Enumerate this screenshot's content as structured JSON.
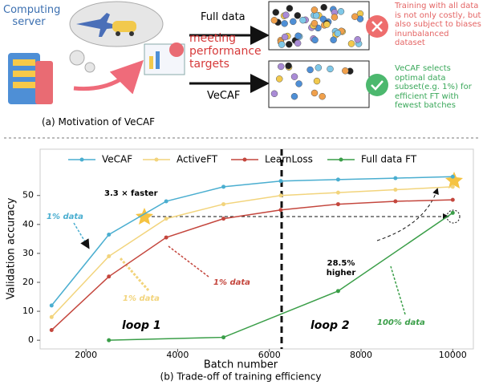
{
  "diagram": {
    "server_label": "Computing server",
    "full_data_label": "Full data",
    "vecaf_label": "VeCAF",
    "target_label": "meeting performance targets",
    "full_data_note": "Training with all data is not only costly, but also subject to biases inunbalanced dataset",
    "vecaf_note": "VeCAF selects optimal data subset(e.g. 1%) for efficient FT with fewest batches",
    "caption": "(a) Motivation of VeCAF"
  },
  "chart_data": {
    "type": "line",
    "caption": "(b) Trade-off of training efficiency",
    "x_label": "Batch number",
    "y_label": "Validation accuracy",
    "xlim": [
      1000,
      10450
    ],
    "ylim": [
      -3,
      66
    ],
    "xticks": [
      2000,
      4000,
      6000,
      8000,
      10000
    ],
    "yticks": [
      0,
      10,
      20,
      30,
      40,
      50
    ],
    "series": [
      {
        "name": "VeCAF",
        "color": "#4aaed0",
        "x": [
          1250,
          2500,
          3750,
          5000,
          6250,
          7500,
          8750,
          10000
        ],
        "values": [
          12,
          36.5,
          48,
          53,
          55,
          55.5,
          56,
          56.5
        ]
      },
      {
        "name": "ActiveFT",
        "color": "#f2d47c",
        "x": [
          1250,
          2500,
          3750,
          5000,
          6250,
          7500,
          8750,
          10000
        ],
        "values": [
          8,
          29,
          42,
          47,
          50,
          51,
          52,
          53
        ]
      },
      {
        "name": "LearnLoss",
        "color": "#c4463d",
        "x": [
          1250,
          2500,
          3750,
          5000,
          6250,
          7500,
          8750,
          10000
        ],
        "values": [
          3.5,
          22,
          35.5,
          42,
          45,
          47,
          48,
          48.5
        ]
      },
      {
        "name": "Full data FT",
        "color": "#3a9e48",
        "x": [
          2500,
          5000,
          7500,
          10000
        ],
        "values": [
          0,
          1,
          17,
          44
        ]
      }
    ],
    "annotations": {
      "faster": "3.3 × faster",
      "higher": "28.5% higher",
      "vecaf_data": "1% data",
      "activeft_data": "1% data",
      "learnloss_data": "1% data",
      "full_data": "100% data",
      "loop1": "loop 1",
      "loop2": "loop 2"
    }
  }
}
